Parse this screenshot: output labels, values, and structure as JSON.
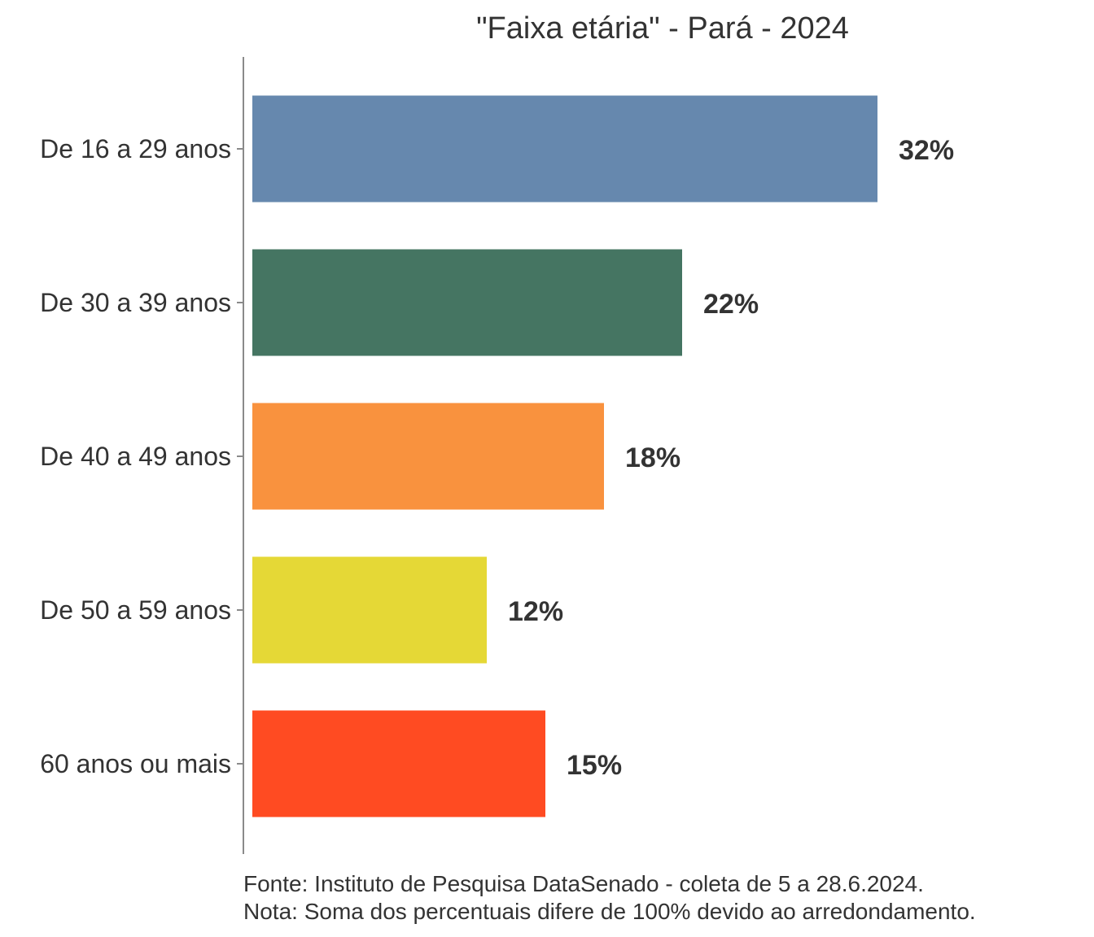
{
  "chart_data": {
    "type": "bar",
    "orientation": "horizontal",
    "title": "\"Faixa etária\" - Pará - 2024",
    "categories": [
      "De 16 a 29 anos",
      "De 30 a 39 anos",
      "De 40 a 49 anos",
      "De 50 a 59 anos",
      "60 anos ou mais"
    ],
    "values": [
      32,
      22,
      18,
      12,
      15
    ],
    "value_labels": [
      "32%",
      "22%",
      "18%",
      "12%",
      "15%"
    ],
    "colors": [
      "#6688AE",
      "#457562",
      "#F9923E",
      "#E5D836",
      "#FF4B22"
    ],
    "xlim": [
      0,
      40
    ],
    "grid": false,
    "legend": "none"
  },
  "footnotes": {
    "source": "Fonte: Instituto de Pesquisa DataSenado - coleta de 5 a 28.6.2024.",
    "note": "Nota: Soma dos percentuais difere de 100% devido ao arredondamento."
  }
}
